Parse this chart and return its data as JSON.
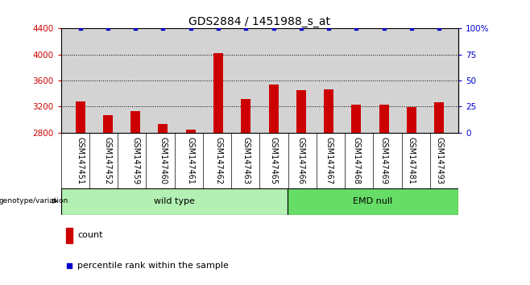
{
  "title": "GDS2884 / 1451988_s_at",
  "samples": [
    "GSM147451",
    "GSM147452",
    "GSM147459",
    "GSM147460",
    "GSM147461",
    "GSM147462",
    "GSM147463",
    "GSM147465",
    "GSM147466",
    "GSM147467",
    "GSM147468",
    "GSM147469",
    "GSM147481",
    "GSM147493"
  ],
  "counts": [
    3280,
    3070,
    3130,
    2930,
    2840,
    4020,
    3320,
    3540,
    3450,
    3460,
    3230,
    3230,
    3190,
    3265
  ],
  "percentile_ranks": [
    100,
    100,
    100,
    100,
    100,
    100,
    100,
    100,
    100,
    100,
    100,
    100,
    100,
    100
  ],
  "wt_count": 8,
  "bar_color": "#CC0000",
  "dot_color": "#0000CC",
  "ylim_left": [
    2800,
    4400
  ],
  "ylim_right": [
    0,
    100
  ],
  "yticks_left": [
    2800,
    3200,
    3600,
    4000,
    4400
  ],
  "yticks_right": [
    0,
    25,
    50,
    75,
    100
  ],
  "yticklabels_right": [
    "0",
    "25",
    "50",
    "75",
    "100%"
  ],
  "grid_values": [
    3200,
    3600,
    4000
  ],
  "bar_area_color": "#d3d3d3",
  "wt_color": "#b3f0b3",
  "emd_color": "#66dd66",
  "legend_count_label": "count",
  "legend_percentile_label": "percentile rank within the sample",
  "genotype_label": "genotype/variation",
  "title_fontsize": 10,
  "tick_fontsize": 7.5,
  "label_fontsize": 7,
  "geno_fontsize": 8
}
